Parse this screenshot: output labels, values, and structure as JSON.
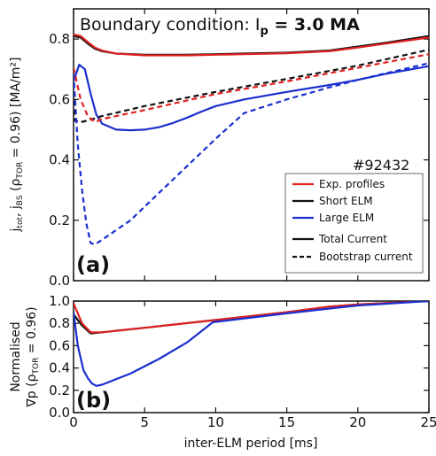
{
  "title_prefix": "Boundary condition: I",
  "title_sub": "p",
  "title_value": " = 3.0 MA",
  "shot_label": "#92432",
  "xlabel": "inter-ELM period [ms]",
  "ylabel_top": "j_tot, j_BS (ρ_TOR = 0.96) [MA/m²]",
  "ylabel_bottom_line1": "Normalised",
  "ylabel_bottom_line2": "∇p (ρ_TOR = 0.96)",
  "legend": {
    "items": [
      "Exp. profiles",
      "Short ELM",
      "Large ELM",
      "Total Current",
      "Bootstrap current"
    ],
    "colors": [
      "#e02020",
      "#111111",
      "#1a2fd0",
      "#111111",
      "#111111"
    ],
    "styles": [
      "solid",
      "solid",
      "solid",
      "solid",
      "dashed"
    ]
  },
  "chart_data": [
    {
      "type": "line",
      "panel": "(a)",
      "xlim": [
        0,
        25
      ],
      "ylim": [
        0.0,
        0.9
      ],
      "x_ticks": [
        0,
        5,
        10,
        15,
        20,
        25
      ],
      "y_ticks": [
        0.0,
        0.2,
        0.4,
        0.6,
        0.8
      ],
      "y_tick_labels": [
        "0.0",
        "0.2",
        "0.4",
        "0.6",
        "0.8"
      ],
      "series": [
        {
          "name": "Short ELM",
          "kind": "Total Current",
          "color": "#111111",
          "dash": false,
          "x": [
            0,
            0.5,
            1,
            1.5,
            2,
            3,
            5,
            8,
            10,
            12,
            15,
            18,
            20,
            22,
            25
          ],
          "y": [
            0.81,
            0.805,
            0.785,
            0.768,
            0.76,
            0.752,
            0.748,
            0.748,
            0.75,
            0.752,
            0.755,
            0.762,
            0.775,
            0.788,
            0.81
          ]
        },
        {
          "name": "Exp. profiles",
          "kind": "Total Current",
          "color": "#e02020",
          "dash": false,
          "x": [
            0,
            0.5,
            1,
            1.5,
            2,
            3,
            5,
            8,
            10,
            12,
            15,
            18,
            20,
            22,
            25
          ],
          "y": [
            0.815,
            0.81,
            0.79,
            0.772,
            0.762,
            0.752,
            0.746,
            0.746,
            0.748,
            0.75,
            0.753,
            0.76,
            0.772,
            0.785,
            0.805
          ]
        },
        {
          "name": "Large ELM",
          "kind": "Total Current",
          "color": "#1a2fd0",
          "dash": false,
          "x": [
            0,
            0.4,
            0.8,
            1.2,
            1.6,
            2,
            3,
            4,
            5,
            6,
            7,
            8,
            9,
            10,
            12,
            15,
            18,
            20,
            22,
            25
          ],
          "y": [
            0.66,
            0.715,
            0.7,
            0.62,
            0.55,
            0.52,
            0.5,
            0.498,
            0.5,
            0.508,
            0.522,
            0.54,
            0.56,
            0.578,
            0.6,
            0.625,
            0.648,
            0.665,
            0.685,
            0.71
          ]
        },
        {
          "name": "Short ELM",
          "kind": "Bootstrap current",
          "color": "#111111",
          "dash": true,
          "x": [
            0,
            0.1,
            0.5,
            1,
            2,
            5,
            10,
            15,
            20,
            25
          ],
          "y": [
            0.655,
            0.53,
            0.525,
            0.53,
            0.545,
            0.578,
            0.625,
            0.668,
            0.712,
            0.765
          ]
        },
        {
          "name": "Exp. profiles",
          "kind": "Bootstrap current",
          "color": "#e02020",
          "dash": true,
          "x": [
            0,
            0.5,
            1,
            1.5,
            2,
            5,
            10,
            15,
            20,
            25
          ],
          "y": [
            0.705,
            0.6,
            0.545,
            0.525,
            0.535,
            0.565,
            0.618,
            0.66,
            0.705,
            0.75
          ]
        },
        {
          "name": "Large ELM",
          "kind": "Bootstrap current",
          "color": "#1a2fd0",
          "dash": true,
          "x": [
            0,
            0.3,
            0.6,
            0.9,
            1.2,
            1.5,
            2,
            4,
            6,
            8,
            10,
            12,
            15,
            18,
            20,
            25
          ],
          "y": [
            0.685,
            0.45,
            0.3,
            0.19,
            0.125,
            0.12,
            0.135,
            0.2,
            0.29,
            0.38,
            0.47,
            0.555,
            0.6,
            0.64,
            0.665,
            0.72
          ]
        }
      ]
    },
    {
      "type": "line",
      "panel": "(b)",
      "xlim": [
        0,
        25
      ],
      "ylim": [
        0.0,
        1.0
      ],
      "x_ticks": [
        0,
        5,
        10,
        15,
        20,
        25
      ],
      "x_tick_labels": [
        "0",
        "5",
        "10",
        "15",
        "20",
        "25"
      ],
      "y_ticks": [
        0.0,
        0.2,
        0.4,
        0.6,
        0.8,
        1.0
      ],
      "y_tick_labels": [
        "0.0",
        "0.2",
        "0.4",
        "0.6",
        "0.8",
        "1.0"
      ],
      "series": [
        {
          "name": "Short ELM",
          "color": "#111111",
          "dash": false,
          "x": [
            0,
            0.6,
            1.2,
            2,
            5,
            10,
            15,
            18,
            20,
            25
          ],
          "y": [
            0.88,
            0.78,
            0.71,
            0.72,
            0.76,
            0.83,
            0.9,
            0.95,
            0.97,
            1.0
          ]
        },
        {
          "name": "Exp. profiles",
          "color": "#e02020",
          "dash": false,
          "x": [
            0,
            0.6,
            1.2,
            2,
            5,
            10,
            15,
            18,
            20,
            25
          ],
          "y": [
            0.98,
            0.8,
            0.72,
            0.72,
            0.76,
            0.83,
            0.9,
            0.95,
            0.97,
            1.0
          ]
        },
        {
          "name": "Large ELM",
          "color": "#1a2fd0",
          "dash": false,
          "x": [
            0,
            0.3,
            0.7,
            1.0,
            1.3,
            1.6,
            2,
            4,
            6,
            8,
            9.8,
            15,
            20,
            25
          ],
          "y": [
            0.9,
            0.6,
            0.38,
            0.31,
            0.26,
            0.24,
            0.25,
            0.35,
            0.48,
            0.63,
            0.81,
            0.89,
            0.96,
            1.0
          ]
        }
      ]
    }
  ]
}
